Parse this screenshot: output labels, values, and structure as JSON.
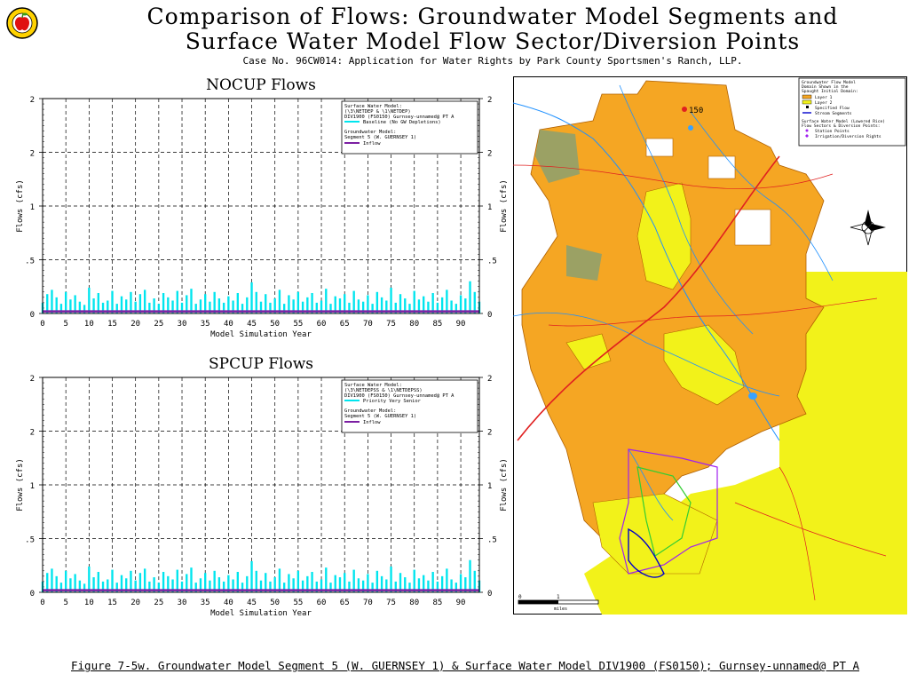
{
  "title": {
    "line1": "Comparison of Flows: Groundwater Model Segments and",
    "line2": "Surface Water Model Flow Sector/Diversion Points",
    "line3": "Case No. 96CW014: Application for Water Rights by Park County Sportsmen's Ranch, LLP."
  },
  "caption": "Figure 7-5w. Groundwater Model Segment 5 (W. GUERNSEY 1) & Surface Water Model DIV1900 (FS0150); Gurnsey-unnamed@ PT A",
  "colors": {
    "baseline": "#00e5ee",
    "inflow": "#7b1fa2",
    "grid": "#000000"
  },
  "chart_data": [
    {
      "type": "bar",
      "title": "NOCUP Flows",
      "xlabel": "Model Simulation Year",
      "ylabel": "Flows (cfs)",
      "x_ticks": [
        "0",
        "5",
        "10",
        "15",
        "20",
        "25",
        "30",
        "35",
        "40",
        "45",
        "50",
        "55",
        "60",
        "65",
        "70",
        "75",
        "80",
        "85",
        "90"
      ],
      "y_ticks": [
        "0",
        ".5",
        "1",
        "2",
        "2"
      ],
      "xlim": [
        0,
        94
      ],
      "ylim": [
        0,
        2
      ],
      "legend": {
        "surface_header": "Surface Water Model:",
        "surface_files": "(\\3\\NETDEP & \\1\\NETDEP)",
        "surface_node": "DIV1900 (FS0150) Gurnsey-unnamed@ PT A",
        "surface_series": "Baseline (No GW Depletions)",
        "gw_header": "Groundwater Model:",
        "gw_segment": "Segment 5 (W. GUERNSEY 1)",
        "gw_series": "Inflow"
      },
      "series": [
        {
          "name": "Baseline (No GW Depletions)",
          "values": [
            0.1,
            0.18,
            0.22,
            0.15,
            0.09,
            0.2,
            0.13,
            0.17,
            0.11,
            0.08,
            0.24,
            0.14,
            0.19,
            0.1,
            0.12,
            0.21,
            0.09,
            0.16,
            0.13,
            0.2,
            0.11,
            0.18,
            0.22,
            0.1,
            0.14,
            0.09,
            0.19,
            0.15,
            0.12,
            0.21,
            0.1,
            0.17,
            0.23,
            0.09,
            0.13,
            0.18,
            0.11,
            0.2,
            0.14,
            0.1,
            0.16,
            0.12,
            0.19,
            0.09,
            0.15,
            0.29,
            0.2,
            0.11,
            0.18,
            0.1,
            0.14,
            0.22,
            0.09,
            0.17,
            0.13,
            0.2,
            0.11,
            0.15,
            0.19,
            0.1,
            0.12,
            0.23,
            0.09,
            0.16,
            0.14,
            0.18,
            0.1,
            0.21,
            0.13,
            0.11,
            0.17,
            0.09,
            0.2,
            0.15,
            0.12,
            0.24,
            0.1,
            0.18,
            0.14,
            0.09,
            0.21,
            0.13,
            0.16,
            0.11,
            0.19,
            0.1,
            0.15,
            0.22,
            0.12,
            0.09,
            0.17,
            0.14,
            0.3,
            0.2,
            0.11
          ]
        },
        {
          "name": "Inflow",
          "values": [
            0.02,
            0.02,
            0.02,
            0.02,
            0.02,
            0.02,
            0.02,
            0.02,
            0.02,
            0.02,
            0.02,
            0.02,
            0.02,
            0.02,
            0.02,
            0.02,
            0.02,
            0.02,
            0.02,
            0.02,
            0.02,
            0.02,
            0.02,
            0.02,
            0.02,
            0.02,
            0.02,
            0.02,
            0.02,
            0.02,
            0.02,
            0.02,
            0.02,
            0.02,
            0.02,
            0.02,
            0.02,
            0.02,
            0.02,
            0.02,
            0.02,
            0.02,
            0.02,
            0.02,
            0.02,
            0.02,
            0.02,
            0.02,
            0.02,
            0.02,
            0.02,
            0.02,
            0.02,
            0.02,
            0.02,
            0.02,
            0.02,
            0.02,
            0.02,
            0.02,
            0.02,
            0.02,
            0.02,
            0.02,
            0.02,
            0.02,
            0.02,
            0.02,
            0.02,
            0.02,
            0.02,
            0.02,
            0.02,
            0.02,
            0.02,
            0.02,
            0.02,
            0.02,
            0.02,
            0.02,
            0.02,
            0.02,
            0.02,
            0.02,
            0.02,
            0.02,
            0.02,
            0.02,
            0.02,
            0.02,
            0.02,
            0.02,
            0.02,
            0.02,
            0.02
          ]
        }
      ]
    },
    {
      "type": "bar",
      "title": "SPCUP Flows",
      "xlabel": "Model Simulation Year",
      "ylabel": "Flows (cfs)",
      "x_ticks": [
        "0",
        "5",
        "10",
        "15",
        "20",
        "25",
        "30",
        "35",
        "40",
        "45",
        "50",
        "55",
        "60",
        "65",
        "70",
        "75",
        "80",
        "85",
        "90"
      ],
      "y_ticks": [
        "0",
        ".5",
        "1",
        "2",
        "2"
      ],
      "xlim": [
        0,
        94
      ],
      "ylim": [
        0,
        2
      ],
      "legend": {
        "surface_header": "Surface Water Model:",
        "surface_files": "(\\3\\NETDEPSS & \\1\\NETDEPSS)",
        "surface_node": "DIV1900 (FS0150) Gurnsey-unnamed@ PT A",
        "surface_series": "Priority Very Senior",
        "gw_header": "Groundwater Model:",
        "gw_segment": "Segment 5 (W. GUERNSEY 1)",
        "gw_series": "Inflow"
      },
      "series": [
        {
          "name": "Priority Very Senior",
          "values": [
            0.1,
            0.18,
            0.22,
            0.15,
            0.09,
            0.2,
            0.13,
            0.17,
            0.11,
            0.08,
            0.24,
            0.14,
            0.19,
            0.1,
            0.12,
            0.21,
            0.09,
            0.16,
            0.13,
            0.2,
            0.11,
            0.18,
            0.22,
            0.1,
            0.14,
            0.09,
            0.19,
            0.15,
            0.12,
            0.21,
            0.1,
            0.17,
            0.23,
            0.09,
            0.13,
            0.18,
            0.11,
            0.2,
            0.14,
            0.1,
            0.16,
            0.12,
            0.19,
            0.09,
            0.15,
            0.29,
            0.2,
            0.11,
            0.18,
            0.1,
            0.14,
            0.22,
            0.09,
            0.17,
            0.13,
            0.2,
            0.11,
            0.15,
            0.19,
            0.1,
            0.12,
            0.23,
            0.09,
            0.16,
            0.14,
            0.18,
            0.1,
            0.21,
            0.13,
            0.11,
            0.17,
            0.09,
            0.2,
            0.15,
            0.12,
            0.24,
            0.1,
            0.18,
            0.14,
            0.09,
            0.21,
            0.13,
            0.16,
            0.11,
            0.19,
            0.1,
            0.15,
            0.22,
            0.12,
            0.09,
            0.17,
            0.14,
            0.3,
            0.2,
            0.11
          ]
        },
        {
          "name": "Inflow",
          "values": [
            0.02,
            0.02,
            0.02,
            0.02,
            0.02,
            0.02,
            0.02,
            0.02,
            0.02,
            0.02,
            0.02,
            0.02,
            0.02,
            0.02,
            0.02,
            0.02,
            0.02,
            0.02,
            0.02,
            0.02,
            0.02,
            0.02,
            0.02,
            0.02,
            0.02,
            0.02,
            0.02,
            0.02,
            0.02,
            0.02,
            0.02,
            0.02,
            0.02,
            0.02,
            0.02,
            0.02,
            0.02,
            0.02,
            0.02,
            0.02,
            0.02,
            0.02,
            0.02,
            0.02,
            0.02,
            0.02,
            0.02,
            0.02,
            0.02,
            0.02,
            0.02,
            0.02,
            0.02,
            0.02,
            0.02,
            0.02,
            0.02,
            0.02,
            0.02,
            0.02,
            0.02,
            0.02,
            0.02,
            0.02,
            0.02,
            0.02,
            0.02,
            0.02,
            0.02,
            0.02,
            0.02,
            0.02,
            0.02,
            0.02,
            0.02,
            0.02,
            0.02,
            0.02,
            0.02,
            0.02,
            0.02,
            0.02,
            0.02,
            0.02,
            0.02,
            0.02,
            0.02,
            0.02,
            0.02,
            0.02,
            0.02,
            0.02,
            0.02,
            0.02,
            0.02
          ]
        }
      ]
    }
  ],
  "map": {
    "legend": {
      "header1": "Groundwater Flow Model",
      "header2": "Domain Shown in the",
      "header3": "Spaught Initial Domain:",
      "layer1": "Layer 1",
      "layer2": "Layer 2",
      "specified": "Specified Flow",
      "stream": "Stream Segments",
      "sw_header1": "Surface Water Model (Lowered Rice)",
      "sw_header2": "Flow Sectors & Diversion Points:",
      "station": "Station Points",
      "irrigation": "Irrigation/Diversion Rights"
    },
    "label_150": "150",
    "scale_0": "0",
    "scale_1": "1",
    "scale_unit": "miles",
    "colors": {
      "layer1": "#f5a623",
      "layer2": "#f2f21a",
      "stream": "#1e90ff",
      "road": "#e02020",
      "water": "#39a2ff"
    }
  }
}
